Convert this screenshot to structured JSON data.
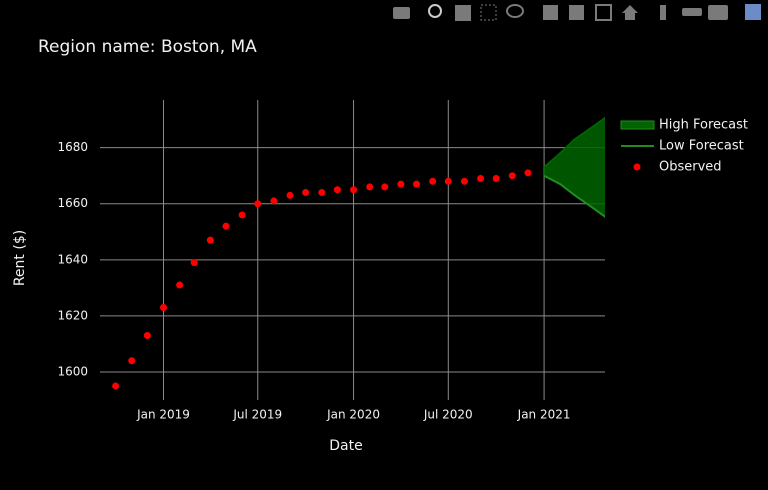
{
  "chart_data": {
    "type": "line",
    "title": "Region name: Boston, MA",
    "x_label": "Date",
    "y_label": "Rent ($)",
    "xlim": [
      "2018-09-01",
      "2021-04-28"
    ],
    "xticks": [
      {
        "value": "2019-01-01",
        "label": "Jan 2019"
      },
      {
        "value": "2019-07-01",
        "label": "Jul 2019"
      },
      {
        "value": "2020-01-01",
        "label": "Jan 2020"
      },
      {
        "value": "2020-07-01",
        "label": "Jul 2020"
      },
      {
        "value": "2021-01-01",
        "label": "Jan 2021"
      }
    ],
    "ylim": [
      1590,
      1697
    ],
    "yticks": [
      1600,
      1620,
      1640,
      1660,
      1680
    ],
    "grid": true,
    "legend": "right",
    "series": [
      {
        "name": "High Forecast",
        "color": "#006400",
        "fill": true,
        "x": [
          "2021-01-01",
          "2021-02-01",
          "2021-03-01",
          "2021-04-01",
          "2021-05-01"
        ],
        "values": [
          1673,
          1678,
          1683,
          1687,
          1691
        ]
      },
      {
        "name": "Low Forecast",
        "color": "#228b22",
        "x": [
          "2021-01-01",
          "2021-02-01",
          "2021-03-01",
          "2021-04-01",
          "2021-05-01"
        ],
        "values": [
          1670,
          1667,
          1663,
          1659,
          1655
        ]
      },
      {
        "name": "Observed",
        "color": "#ff0000",
        "markers": true,
        "x": [
          "2018-10-01",
          "2018-11-01",
          "2018-12-01",
          "2019-01-01",
          "2019-02-01",
          "2019-03-01",
          "2019-04-01",
          "2019-05-01",
          "2019-06-01",
          "2019-07-01",
          "2019-08-01",
          "2019-09-01",
          "2019-10-01",
          "2019-11-01",
          "2019-12-01",
          "2020-01-01",
          "2020-02-01",
          "2020-03-01",
          "2020-04-01",
          "2020-05-01",
          "2020-06-01",
          "2020-07-01",
          "2020-08-01",
          "2020-09-01",
          "2020-10-01",
          "2020-11-01",
          "2020-12-01"
        ],
        "values": [
          1595,
          1604,
          1613,
          1623,
          1631,
          1639,
          1647,
          1652,
          1656,
          1660,
          1661,
          1663,
          1664,
          1664,
          1665,
          1665,
          1666,
          1666,
          1667,
          1667,
          1668,
          1668,
          1668,
          1669,
          1669,
          1670,
          1671
        ]
      }
    ]
  }
}
